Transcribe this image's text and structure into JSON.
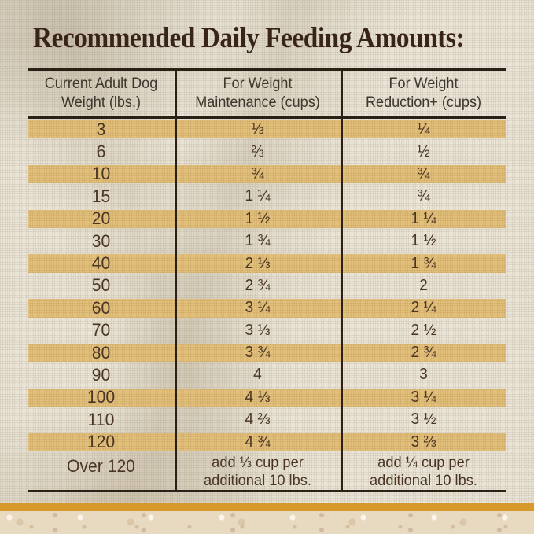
{
  "title": "Recommended Daily Feeding Amounts:",
  "table": {
    "headers": {
      "weight": {
        "line1": "Current Adult Dog",
        "line2": "Weight (lbs.)"
      },
      "maintenance": {
        "line1": "For Weight",
        "line2": "Maintenance (cups)"
      },
      "reduction": {
        "line1": "For Weight",
        "line2": "Reduction+ (cups)"
      }
    },
    "rows": [
      {
        "weight": "3",
        "maintenance": "⅓",
        "reduction": "¼"
      },
      {
        "weight": "6",
        "maintenance": "⅔",
        "reduction": "½"
      },
      {
        "weight": "10",
        "maintenance": "¾",
        "reduction": "¾"
      },
      {
        "weight": "15",
        "maintenance": "1 ¼",
        "reduction": "¾"
      },
      {
        "weight": "20",
        "maintenance": "1 ½",
        "reduction": "1 ¼"
      },
      {
        "weight": "30",
        "maintenance": "1 ¾",
        "reduction": "1 ½"
      },
      {
        "weight": "40",
        "maintenance": "2 ⅓",
        "reduction": "1 ¾"
      },
      {
        "weight": "50",
        "maintenance": "2 ¾",
        "reduction": "2"
      },
      {
        "weight": "60",
        "maintenance": "3 ¼",
        "reduction": "2 ¼"
      },
      {
        "weight": "70",
        "maintenance": "3 ⅓",
        "reduction": "2 ½"
      },
      {
        "weight": "80",
        "maintenance": "3 ¾",
        "reduction": "2 ¾"
      },
      {
        "weight": "90",
        "maintenance": "4",
        "reduction": "3"
      },
      {
        "weight": "100",
        "maintenance": "4 ⅓",
        "reduction": "3 ¼"
      },
      {
        "weight": "110",
        "maintenance": "4 ⅔",
        "reduction": "3 ½"
      },
      {
        "weight": "120",
        "maintenance": "4 ¾",
        "reduction": "3 ⅔"
      }
    ],
    "footer": {
      "weight": "Over 120",
      "maintenance": "add ⅓ cup per\nadditional 10 lbs.",
      "reduction": "add ¼ cup per\nadditional 10 lbs."
    }
  },
  "colors": {
    "burlap_background": "#ece6d8",
    "stripe": "#e2c07b",
    "table_line": "#2b2015",
    "title_text": "#39241a",
    "header_text": "#3d372e",
    "cell_text": "#4a3524",
    "accent_bar": "#d7992b",
    "stone_surface": "#e8d9c1"
  }
}
